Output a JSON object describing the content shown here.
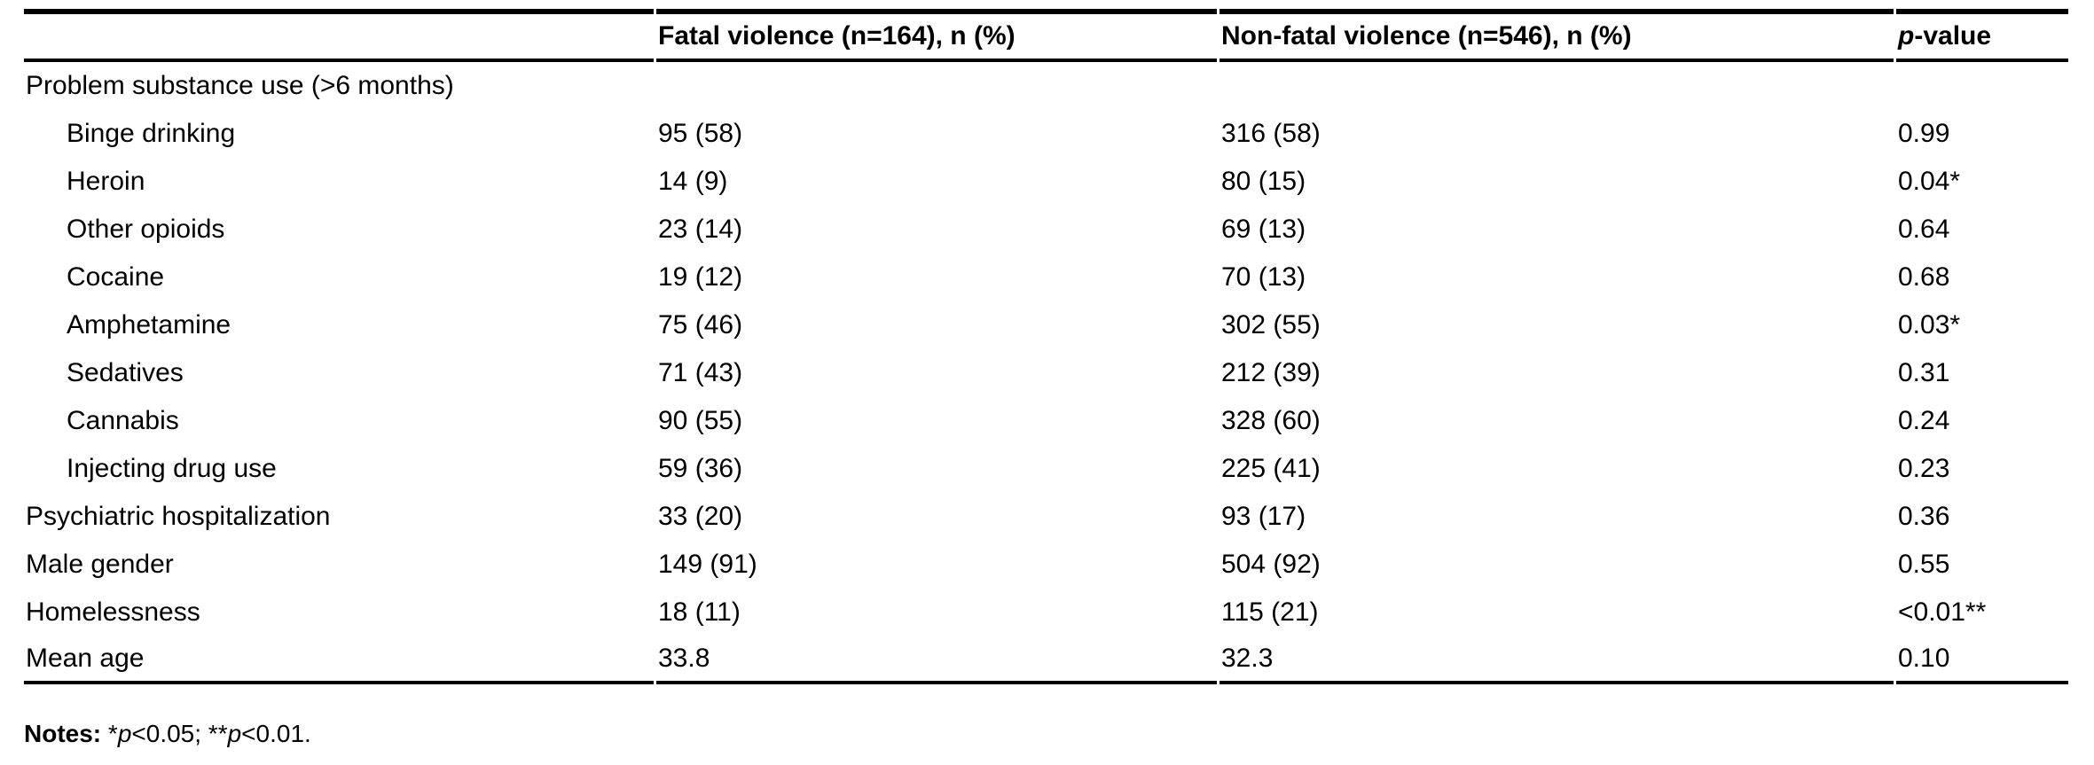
{
  "table": {
    "header": {
      "label_col": "",
      "fatal": "Fatal violence (n=164), n (%)",
      "nonfatal": "Non-fatal violence (n=546), n (%)",
      "pvalue_italic": "p",
      "pvalue_rest": "-value"
    },
    "rows": [
      {
        "label": "Problem substance use (>6 months)",
        "fatal": "",
        "nonfatal": "",
        "p": ""
      },
      {
        "label": "Binge drinking",
        "fatal": "95 (58)",
        "nonfatal": "316 (58)",
        "p": "0.99"
      },
      {
        "label": "Heroin",
        "fatal": "14 (9)",
        "nonfatal": "80 (15)",
        "p": "0.04*"
      },
      {
        "label": "Other opioids",
        "fatal": "23 (14)",
        "nonfatal": "69 (13)",
        "p": "0.64"
      },
      {
        "label": "Cocaine",
        "fatal": "19 (12)",
        "nonfatal": "70 (13)",
        "p": "0.68"
      },
      {
        "label": "Amphetamine",
        "fatal": "75 (46)",
        "nonfatal": "302 (55)",
        "p": "0.03*"
      },
      {
        "label": "Sedatives",
        "fatal": "71 (43)",
        "nonfatal": "212 (39)",
        "p": "0.31"
      },
      {
        "label": "Cannabis",
        "fatal": "90 (55)",
        "nonfatal": "328 (60)",
        "p": "0.24"
      },
      {
        "label": "Injecting drug use",
        "fatal": "59 (36)",
        "nonfatal": "225 (41)",
        "p": "0.23"
      },
      {
        "label": "Psychiatric hospitalization",
        "fatal": "33 (20)",
        "nonfatal": "93 (17)",
        "p": "0.36"
      },
      {
        "label": "Male gender",
        "fatal": "149 (91)",
        "nonfatal": "504 (92)",
        "p": "0.55"
      },
      {
        "label": "Homelessness",
        "fatal": "18 (11)",
        "nonfatal": "115 (21)",
        "p": "<0.01**"
      },
      {
        "label": "Mean age",
        "fatal": "33.8",
        "nonfatal": "32.3",
        "p": "0.10"
      }
    ],
    "notes": {
      "label": "Notes:",
      "seg1": " *",
      "p1": "p",
      "seg2": "<0.05; **",
      "p2": "p",
      "seg3": "<0.01."
    },
    "colors": {
      "text": "#000000",
      "background": "#ffffff",
      "rule": "#000000"
    }
  }
}
